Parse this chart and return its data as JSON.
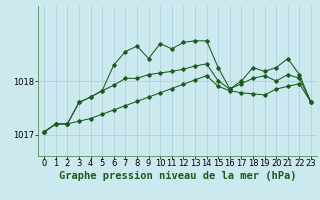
{
  "background_color": "#cce9f0",
  "grid_color": "#aaccd8",
  "line_color": "#1a5c1a",
  "marker_color": "#1a5c1a",
  "title": "Graphe pression niveau de la mer (hPa)",
  "xlim": [
    -0.5,
    23.5
  ],
  "ylim": [
    1016.6,
    1019.4
  ],
  "yticks": [
    1017,
    1018
  ],
  "xticks": [
    0,
    1,
    2,
    3,
    4,
    5,
    6,
    7,
    8,
    9,
    10,
    11,
    12,
    13,
    14,
    15,
    16,
    17,
    18,
    19,
    20,
    21,
    22,
    23
  ],
  "series1": [
    1017.05,
    1017.2,
    1017.2,
    1017.25,
    1017.3,
    1017.38,
    1017.46,
    1017.54,
    1017.62,
    1017.7,
    1017.78,
    1017.86,
    1017.94,
    1018.02,
    1018.1,
    1017.9,
    1017.82,
    1017.78,
    1017.76,
    1017.74,
    1017.85,
    1017.9,
    1017.95,
    1017.6
  ],
  "series2": [
    1017.05,
    1017.2,
    1017.2,
    1017.6,
    1017.7,
    1017.82,
    1017.92,
    1018.05,
    1018.05,
    1018.12,
    1018.15,
    1018.18,
    1018.22,
    1018.28,
    1018.32,
    1018.0,
    1017.85,
    1017.95,
    1018.05,
    1018.1,
    1018.0,
    1018.12,
    1018.05,
    1017.6
  ],
  "series3": [
    1017.05,
    1017.2,
    1017.2,
    1017.6,
    1017.7,
    1017.82,
    1018.3,
    1018.55,
    1018.65,
    1018.42,
    1018.7,
    1018.6,
    1018.72,
    1018.75,
    1018.75,
    1018.25,
    1017.85,
    1018.0,
    1018.25,
    1018.18,
    1018.25,
    1018.42,
    1018.12,
    1017.6
  ],
  "title_fontsize": 7.5,
  "tick_fontsize": 6,
  "figwidth": 3.2,
  "figheight": 2.0,
  "dpi": 100
}
